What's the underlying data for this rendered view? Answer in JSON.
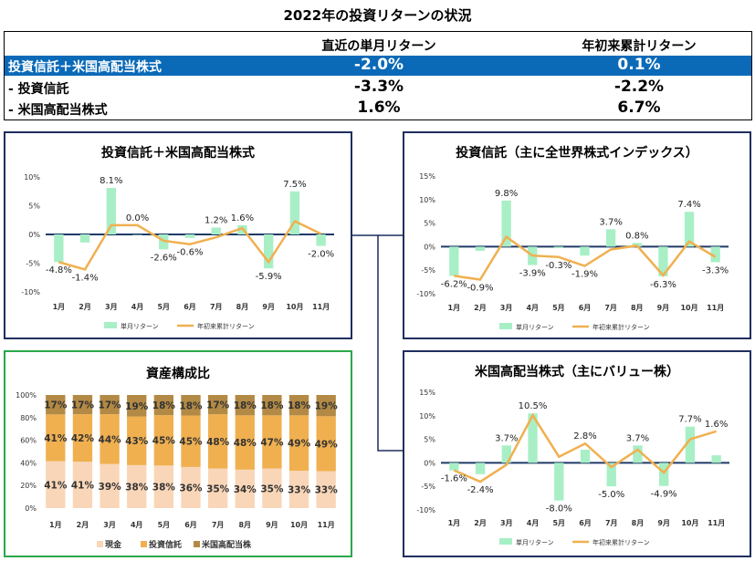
{
  "title": "2022年の投資リターンの状況",
  "summary": {
    "col1": "直近の単月リターン",
    "col2": "年初来累計リターン",
    "rows": [
      {
        "label": "投資信託＋米国高配当株式",
        "v1": "-2.0%",
        "v2": "0.1%"
      },
      {
        "label": "- 投資信託",
        "v1": "-3.3%",
        "v2": "-2.2%"
      },
      {
        "label": "- 米国高配当株式",
        "v1": "1.6%",
        "v2": "6.7%"
      }
    ]
  },
  "colors": {
    "bar": "#a8efc6",
    "line": "#f0b050",
    "axis": "#1f3a68",
    "frame_blue": "#1f2e5e",
    "frame_green": "#2aa84a",
    "cash": "#f9d6b8",
    "fund": "#f0b050",
    "stock": "#b38a45"
  },
  "chart_data": [
    {
      "type": "bar+line",
      "title": "投資信託＋米国高配当株式",
      "categories": [
        "1月",
        "2月",
        "3月",
        "4月",
        "5月",
        "6月",
        "7月",
        "8月",
        "9月",
        "10月",
        "11月"
      ],
      "ylim": [
        -10,
        10
      ],
      "yticks": [
        "10%",
        "5%",
        "0%",
        "-5%",
        "-10%"
      ],
      "series": [
        {
          "name": "単月リターン",
          "kind": "bar",
          "values": [
            -4.8,
            -1.4,
            8.1,
            0.0,
            -2.6,
            -0.6,
            1.2,
            1.6,
            -5.9,
            7.5,
            -2.0
          ],
          "labels": [
            "-4.8%",
            "-1.4%",
            "8.1%",
            "0.0%",
            "-2.6%",
            "-0.6%",
            "1.2%",
            "1.6%",
            "-5.9%",
            "7.5%",
            "-2.0%"
          ]
        },
        {
          "name": "年初来累計リターン",
          "kind": "line",
          "values": [
            -4.8,
            -6.1,
            1.6,
            1.6,
            -1.1,
            -1.7,
            -0.5,
            1.1,
            -4.8,
            2.3,
            0.1
          ]
        }
      ],
      "legend": "bottom"
    },
    {
      "type": "bar+line",
      "title": "投資信託（主に全世界株式インデックス）",
      "categories": [
        "1月",
        "2月",
        "3月",
        "4月",
        "5月",
        "6月",
        "7月",
        "8月",
        "9月",
        "10月",
        "11月"
      ],
      "ylim": [
        -10,
        15
      ],
      "yticks": [
        "15%",
        "10%",
        "5%",
        "0%",
        "-5%",
        "-10%"
      ],
      "series": [
        {
          "name": "単月リターン",
          "kind": "bar",
          "values": [
            -6.2,
            -0.9,
            9.8,
            -3.9,
            -0.3,
            -1.9,
            3.7,
            0.8,
            -6.3,
            7.4,
            -3.3
          ],
          "labels": [
            "-6.2%",
            "-0.9%",
            "9.8%",
            "-3.9%",
            "-0.3%",
            "-1.9%",
            "3.7%",
            "0.8%",
            "-6.3%",
            "7.4%",
            "-3.3%"
          ]
        },
        {
          "name": "年初来累計リターン",
          "kind": "line",
          "values": [
            -6.2,
            -7.0,
            2.1,
            -1.9,
            -2.2,
            -4.1,
            -0.6,
            0.2,
            -6.1,
            1.1,
            -2.2
          ]
        }
      ],
      "legend": "bottom"
    },
    {
      "type": "bar+line",
      "title": "米国高配当株式（主にバリュー株）",
      "categories": [
        "1月",
        "2月",
        "3月",
        "4月",
        "5月",
        "6月",
        "7月",
        "8月",
        "9月",
        "10月",
        "11月"
      ],
      "ylim": [
        -10,
        15
      ],
      "yticks": [
        "15%",
        "10%",
        "5%",
        "0%",
        "-5%",
        "-10%"
      ],
      "series": [
        {
          "name": "単月リターン",
          "kind": "bar",
          "values": [
            -1.6,
            -2.4,
            3.7,
            10.5,
            -8.0,
            2.8,
            -5.0,
            3.7,
            -4.9,
            7.7,
            1.6
          ],
          "labels": [
            "-1.6%",
            "-2.4%",
            "3.7%",
            "10.5%",
            "-8.0%",
            "2.8%",
            "-5.0%",
            "3.7%",
            "-4.9%",
            "7.7%",
            "1.6%"
          ]
        },
        {
          "name": "年初来累計リターン",
          "kind": "line",
          "values": [
            -1.6,
            -4.0,
            -0.4,
            10.1,
            1.3,
            4.1,
            -0.9,
            2.8,
            -2.1,
            5.0,
            6.7
          ]
        }
      ],
      "legend": "bottom"
    },
    {
      "type": "stacked-bar",
      "title": "資産構成比",
      "categories": [
        "1月",
        "2月",
        "3月",
        "4月",
        "5月",
        "6月",
        "7月",
        "8月",
        "9月",
        "10月",
        "11月"
      ],
      "ylim": [
        0,
        100
      ],
      "yticks": [
        "100%",
        "80%",
        "60%",
        "40%",
        "20%",
        "0%"
      ],
      "series": [
        {
          "name": "現金",
          "values": [
            41,
            41,
            39,
            38,
            38,
            36,
            35,
            34,
            35,
            33,
            33
          ]
        },
        {
          "name": "投資信託",
          "values": [
            41,
            42,
            44,
            43,
            45,
            45,
            48,
            48,
            47,
            49,
            49
          ]
        },
        {
          "name": "米国高配当株",
          "values": [
            17,
            17,
            17,
            19,
            18,
            18,
            17,
            18,
            18,
            18,
            19
          ]
        }
      ],
      "legend": "bottom"
    }
  ]
}
